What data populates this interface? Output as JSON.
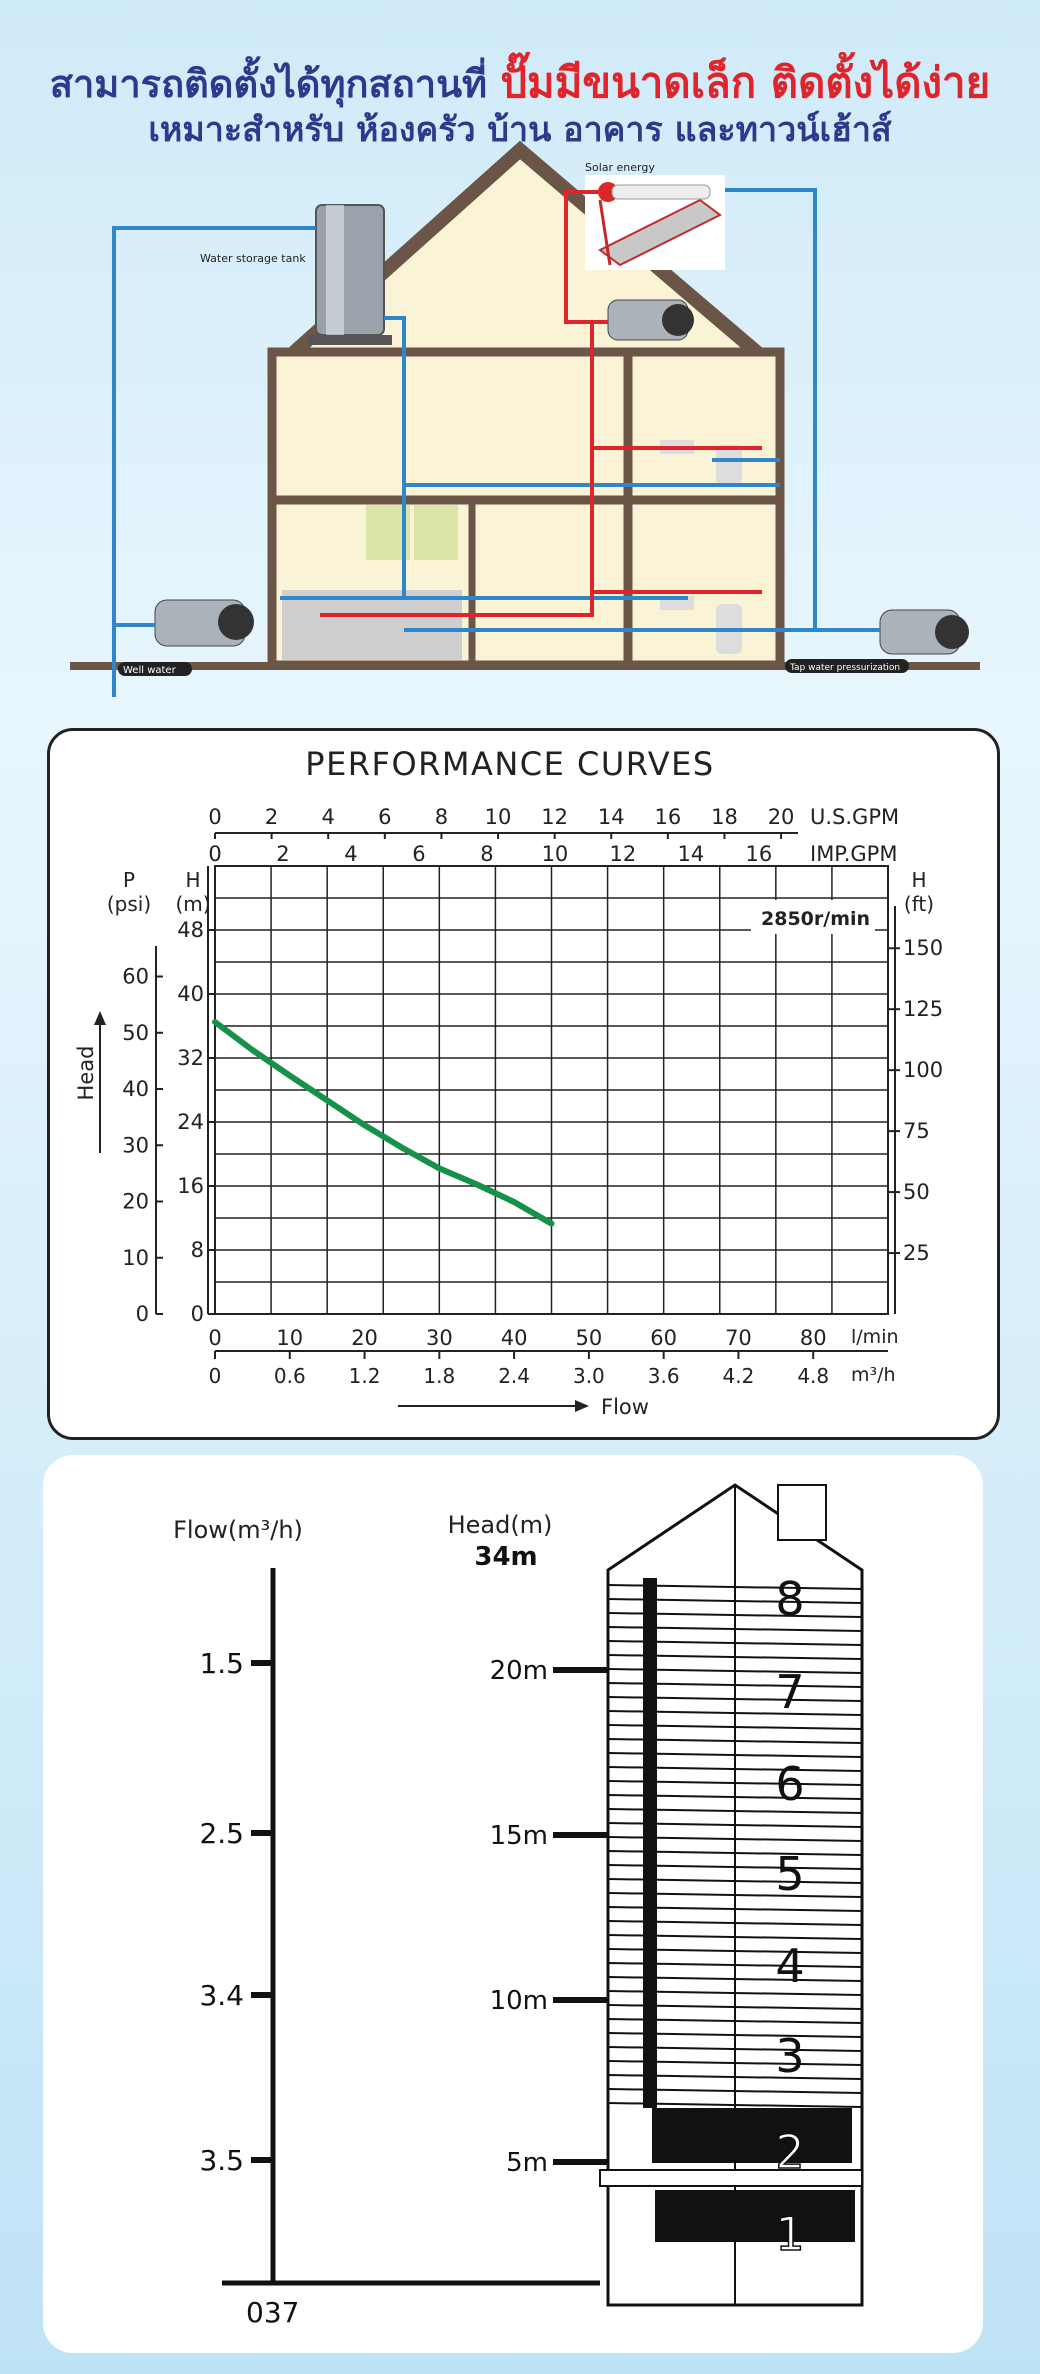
{
  "header": {
    "line1_a": "สามารถติดตั้งได้ทุกสถานที่ ",
    "line1_b": "ปั๊มมีขนาดเล็ก ติดตั้งได้ง่าย",
    "line2": "เหมาะสำหรับ ห้องครัว บ้าน อาคาร และทาวน์เฮ้าส์",
    "accent_blue": "#2b3a8c",
    "accent_red": "#e0242b"
  },
  "house": {
    "label_tank": "Water storage tank",
    "label_solar": "Solar energy",
    "label_well": "Well water",
    "label_tap": "Tap water pressurization",
    "pipe_blue": "#2f86c8",
    "pipe_red": "#e0242b"
  },
  "chart_data": [
    {
      "type": "line",
      "title": "PERFORMANCE CURVES",
      "annotation": "2850r/min",
      "x_axes": {
        "lmin": {
          "label": "l/min",
          "ticks": [
            0,
            10,
            20,
            30,
            40,
            50,
            60,
            70,
            80
          ]
        },
        "m3h": {
          "label": "m³/h",
          "ticks": [
            "0",
            "0.6",
            "1.2",
            "1.8",
            "2.4",
            "3.0",
            "3.6",
            "4.2",
            "4.8"
          ]
        },
        "usgpm": {
          "label": "U.S.GPM",
          "ticks": [
            0,
            2,
            4,
            6,
            8,
            10,
            12,
            14,
            16,
            18,
            20
          ]
        },
        "impgpm": {
          "label": "IMP.GPM",
          "ticks": [
            0,
            2,
            4,
            6,
            8,
            10,
            12,
            14,
            16
          ]
        }
      },
      "y_axes": {
        "head_m": {
          "label": "H",
          "unit": "(m)",
          "ticks": [
            0,
            8,
            16,
            24,
            32,
            40,
            48
          ]
        },
        "psi": {
          "label": "P",
          "unit": "(psi)",
          "ticks": [
            0,
            10,
            20,
            30,
            40,
            50,
            60
          ]
        },
        "ft": {
          "label": "H",
          "unit": "(ft)",
          "ticks": [
            25,
            50,
            75,
            100,
            125,
            150
          ]
        }
      },
      "xlabel": "Flow",
      "ylabel": "Head",
      "xlim": [
        0,
        90
      ],
      "ylim": [
        0,
        56
      ],
      "series": [
        {
          "x": [
            0,
            5,
            10,
            15,
            20,
            25,
            30,
            35,
            40,
            45
          ],
          "y": [
            36.5,
            33.0,
            29.8,
            26.7,
            23.6,
            20.8,
            18.2,
            16.2,
            14.0,
            11.3
          ]
        }
      ],
      "curve_color": "#15914a"
    },
    {
      "type": "table",
      "flow_title": "Flow(m³/h)",
      "head_title": "Head(m)",
      "flow_values": [
        "1.5",
        "2.5",
        "3.4",
        "3.5"
      ],
      "head_values": [
        "20m",
        "15m",
        "10m",
        "5m"
      ],
      "top_head": "34m",
      "zero_label": "037",
      "floors": [
        "1",
        "2",
        "3",
        "4",
        "5",
        "6",
        "7",
        "8"
      ]
    }
  ]
}
